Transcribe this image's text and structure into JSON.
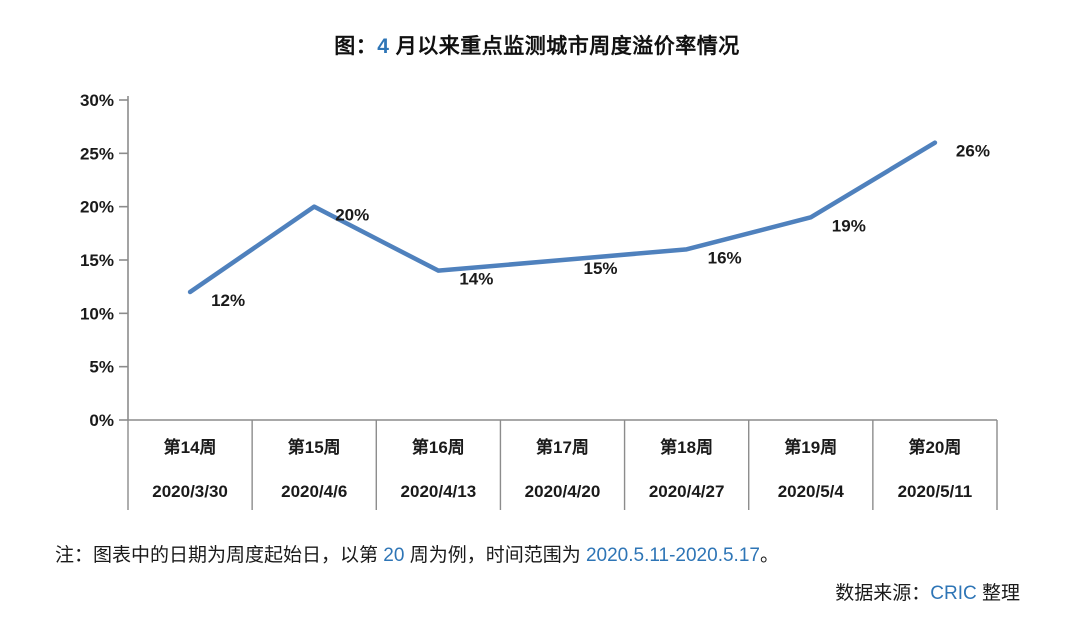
{
  "title": {
    "seg1": "图：",
    "seg2": "4",
    "seg3": " 月以来重点监测城市周度溢价率情况"
  },
  "note": {
    "seg1": "注：图表中的日期为周度起始日，以第 ",
    "seg2": "20",
    "seg3": " 周为例，时间范围为 ",
    "seg4": "2020.5.11-2020.5.17",
    "seg5": "。"
  },
  "source": {
    "seg1": "数据来源：",
    "seg2": "CRIC",
    "seg3": " 整理"
  },
  "colors": {
    "line": "#4F81BD",
    "axis": "#8C8C8C",
    "text": "#1A1A1A",
    "number_accent": "#2E75B6"
  },
  "chart_data": {
    "type": "line",
    "title": "图：4 月以来重点监测城市周度溢价率情况",
    "categories": [
      {
        "week": "第14周",
        "date": "2020/3/30"
      },
      {
        "week": "第15周",
        "date": "2020/4/6"
      },
      {
        "week": "第16周",
        "date": "2020/4/13"
      },
      {
        "week": "第17周",
        "date": "2020/4/20"
      },
      {
        "week": "第18周",
        "date": "2020/4/27"
      },
      {
        "week": "第19周",
        "date": "2020/5/4"
      },
      {
        "week": "第20周",
        "date": "2020/5/11"
      }
    ],
    "values": [
      12,
      20,
      14,
      15,
      16,
      19,
      26
    ],
    "data_labels": [
      "12%",
      "20%",
      "14%",
      "15%",
      "16%",
      "19%",
      "26%"
    ],
    "unit": "%",
    "ylim": [
      0,
      30
    ],
    "ytick_step": 5,
    "xlabel": "",
    "ylabel": "",
    "grid": false,
    "legend": "none"
  }
}
